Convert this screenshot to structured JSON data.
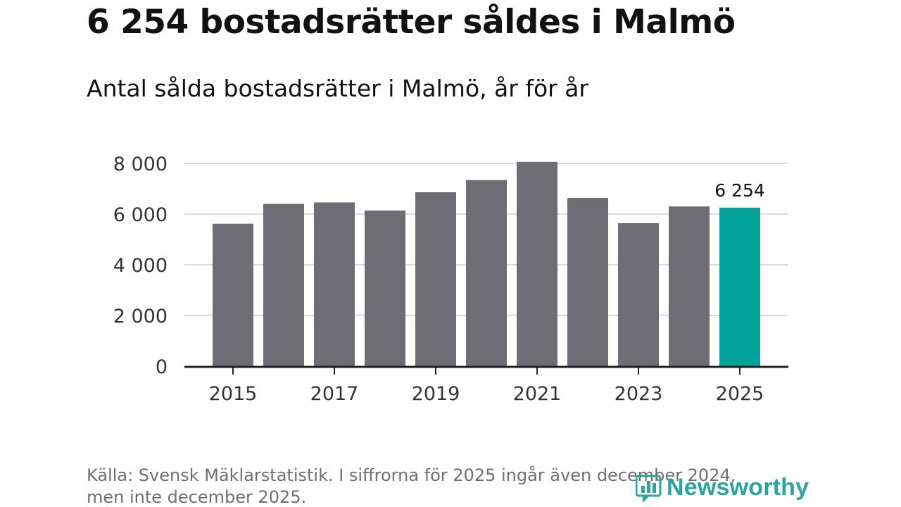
{
  "title": "6 254 bostadsrätter såldes i Malmö",
  "subtitle": "Antal sålda bostadsrätter i Malmö, år för år",
  "chart_data": {
    "type": "bar",
    "title": "6 254 bostadsrätter såldes i Malmö",
    "subtitle": "Antal sålda bostadsrätter i Malmö, år för år",
    "xlabel": "",
    "ylabel": "",
    "categories": [
      "2015",
      "2016",
      "2017",
      "2018",
      "2019",
      "2020",
      "2021",
      "2022",
      "2023",
      "2024",
      "2025"
    ],
    "values": [
      5620,
      6400,
      6460,
      6140,
      6860,
      7340,
      8060,
      6640,
      5640,
      6300,
      6254
    ],
    "x_tick_labels": [
      "2015",
      "2017",
      "2019",
      "2021",
      "2023",
      "2025"
    ],
    "y_ticks": [
      0,
      2000,
      4000,
      6000,
      8000
    ],
    "y_tick_labels": [
      "0",
      "2 000",
      "4 000",
      "6 000",
      "8 000"
    ],
    "ylim": [
      0,
      8000
    ],
    "grid": true,
    "highlight_index": 10,
    "highlight_label": "6 254",
    "colors": {
      "bar": "#6e6d73",
      "highlight": "#00a39a",
      "grid": "#d9d9d9",
      "axis": "#222222",
      "tick_text": "#333333"
    }
  },
  "footnote": {
    "line1": "Källa: Svensk Mäklarstatistik. I siffrorna för 2025 ingår även december 2024,",
    "line2": "men inte december 2025."
  },
  "brand": {
    "name": "Newsworthy",
    "icon": "newsworthy-logo-icon",
    "color": "#2aa59d"
  }
}
